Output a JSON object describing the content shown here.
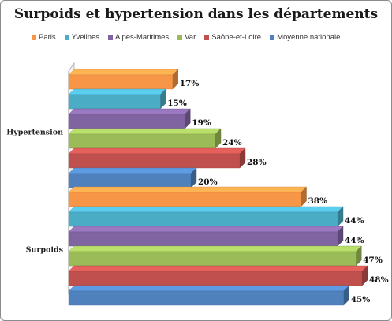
{
  "chart_data": {
    "type": "bar",
    "orientation": "horizontal",
    "style": "3d",
    "title": "Surpoids et hypertension dans les départements",
    "categories": [
      "Hypertension",
      "Surpoids"
    ],
    "xlim": [
      0,
      50
    ],
    "grid": false,
    "legend_position": "top",
    "value_format": "percent",
    "series": [
      {
        "name": "Paris",
        "color": "#f79646",
        "values": [
          17,
          38
        ]
      },
      {
        "name": "Yvelines",
        "color": "#4bacc6",
        "values": [
          15,
          44
        ]
      },
      {
        "name": "Alpes-Maritimes",
        "color": "#8064a2",
        "values": [
          19,
          44
        ]
      },
      {
        "name": "Var",
        "color": "#9bbb59",
        "values": [
          24,
          47
        ]
      },
      {
        "name": "Saône-et-Loire",
        "color": "#c0504d",
        "values": [
          28,
          48
        ]
      },
      {
        "name": "Moyenne nationale",
        "color": "#4f81bd",
        "values": [
          20,
          45
        ]
      }
    ]
  }
}
